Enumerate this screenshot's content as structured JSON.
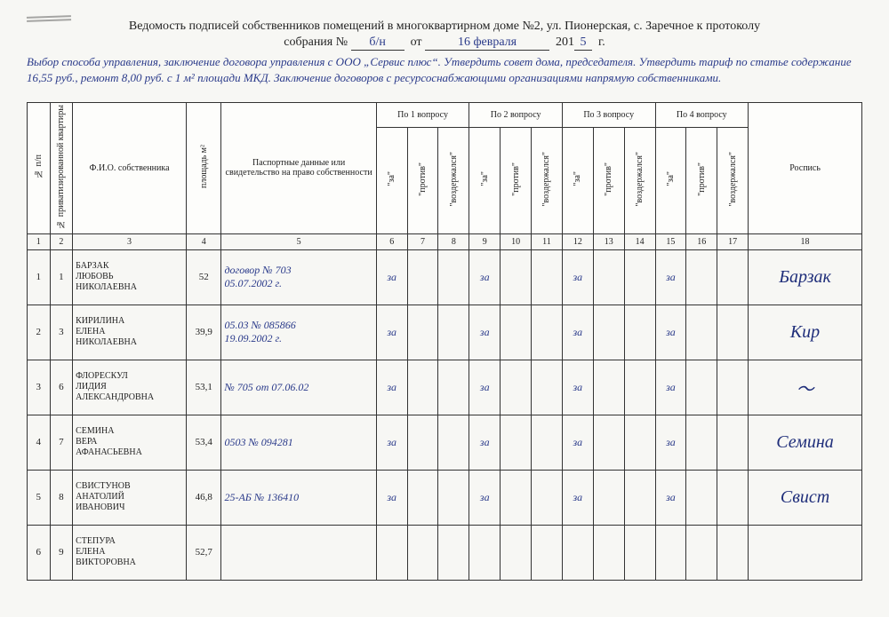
{
  "header": {
    "line1_prefix": "Ведомость подписей собственников помещений в многоквартирном доме №2, ул. Пионерская, с. Заречное к протоколу",
    "line2_prefix": "собрания №",
    "num": "б/н",
    "from": "от",
    "date": "16 февраля",
    "year_prefix": "201",
    "year_last": "5",
    "year_suffix": "г."
  },
  "agenda_hand": "Выбор способа управления, заключение договора управления с ООО „Сервис плюс“. Утвердить совет дома, председателя. Утвердить тариф по статье содержание 16,55 руб., ремонт 8,00 руб. с 1 м² площади МКД. Заключение договоров с ресурсоснабжающими организациями напрямую собственниками.",
  "cols": {
    "n": "№ п/п",
    "priv": "№ приватизированной квартиры",
    "fio": "Ф.И.О. собственника",
    "area": "площадь м²",
    "doc": "Паспортные данные или свидетельство на право собственности",
    "q1": "По 1 вопросу",
    "q2": "По 2 вопросу",
    "q3": "По 3 вопросу",
    "q4": "По 4 вопросу",
    "za": "\"за\"",
    "protiv": "\"против\"",
    "vozd": "\"воздержался\"",
    "sig": "Роспись"
  },
  "colnums": [
    "1",
    "2",
    "3",
    "4",
    "5",
    "6",
    "7",
    "8",
    "9",
    "10",
    "11",
    "12",
    "13",
    "14",
    "15",
    "16",
    "17",
    "18"
  ],
  "rows": [
    {
      "n": "1",
      "apt": "1",
      "fio": "БАРЗАК\nЛЮБОВЬ\nНИКОЛАЕВНА",
      "area": "52",
      "doc": "договор № 703\n05.07.2002 г.",
      "v": [
        "за",
        "",
        "",
        "за",
        "",
        "",
        "за",
        "",
        "",
        "за",
        "",
        ""
      ],
      "sig": "Барзак"
    },
    {
      "n": "2",
      "apt": "3",
      "fio": "КИРИЛИНА\nЕЛЕНА\nНИКОЛАЕВНА",
      "area": "39,9",
      "doc": "05.03 № 085866\n19.09.2002 г.",
      "v": [
        "за",
        "",
        "",
        "за",
        "",
        "",
        "за",
        "",
        "",
        "за",
        "",
        ""
      ],
      "sig": "Кир"
    },
    {
      "n": "3",
      "apt": "6",
      "fio": "ФЛОРЕСКУЛ\nЛИДИЯ\nАЛЕКСАНДРОВНА",
      "area": "53,1",
      "doc": "№ 705 от 07.06.02",
      "v": [
        "за",
        "",
        "",
        "за",
        "",
        "",
        "за",
        "",
        "",
        "за",
        "",
        ""
      ],
      "sig": "～"
    },
    {
      "n": "4",
      "apt": "7",
      "fio": "СЕМИНА\nВЕРА\nАФАНАСЬЕВНА",
      "area": "53,4",
      "doc": "0503 № 094281",
      "v": [
        "за",
        "",
        "",
        "за",
        "",
        "",
        "за",
        "",
        "",
        "за",
        "",
        ""
      ],
      "sig": "Семина"
    },
    {
      "n": "5",
      "apt": "8",
      "fio": "СВИСТУНОВ\nАНАТОЛИЙ\nИВАНОВИЧ",
      "area": "46,8",
      "doc": "25-АБ № 136410",
      "v": [
        "за",
        "",
        "",
        "за",
        "",
        "",
        "за",
        "",
        "",
        "за",
        "",
        ""
      ],
      "sig": "Свист"
    },
    {
      "n": "6",
      "apt": "9",
      "fio": "СТЕПУРА\nЕЛЕНА\nВИКТОРОВНА",
      "area": "52,7",
      "doc": "",
      "v": [
        "",
        "",
        "",
        "",
        "",
        "",
        "",
        "",
        "",
        "",
        "",
        ""
      ],
      "sig": ""
    }
  ]
}
